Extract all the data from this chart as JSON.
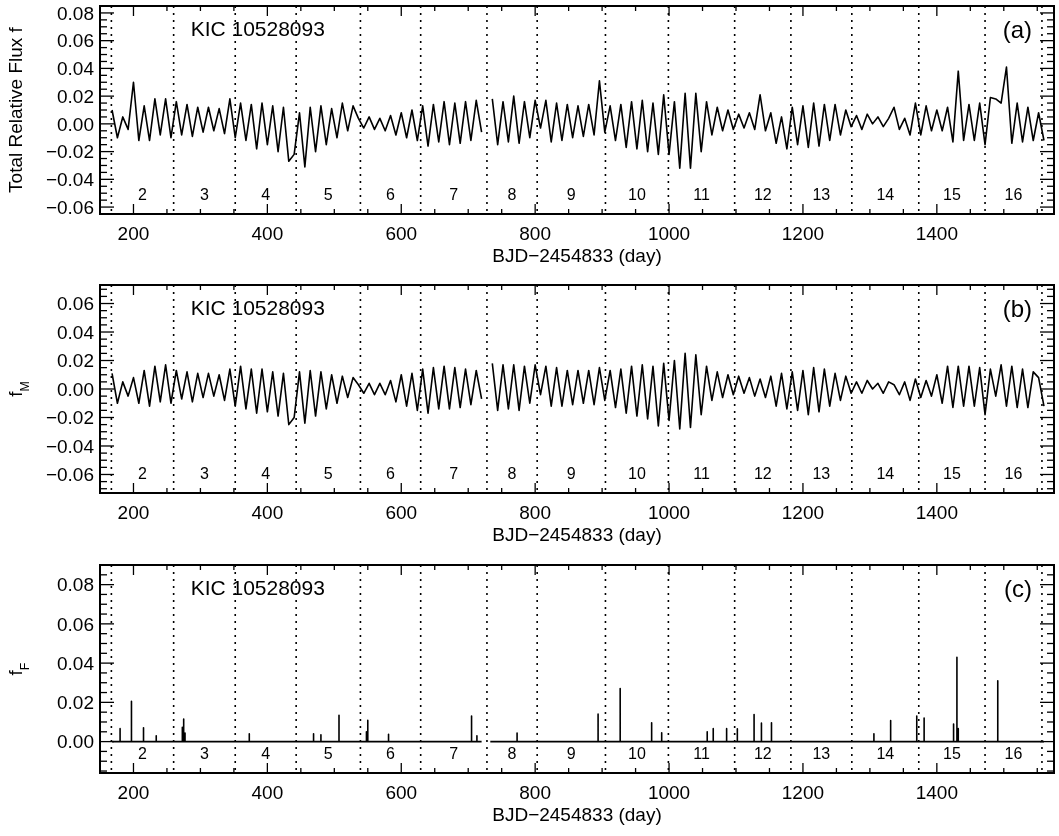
{
  "chart_data": [
    {
      "type": "line",
      "ylabel": "Total Relative Flux f",
      "xlabel": "BJD−2454833 (day)",
      "xlim": [
        150,
        1575
      ],
      "ylim": [
        -0.065,
        0.085
      ],
      "xticks": [
        {
          "value": 200,
          "label": "200"
        },
        {
          "value": 250,
          "label": null
        },
        {
          "value": 300,
          "label": null
        },
        {
          "value": 350,
          "label": null
        },
        {
          "value": 400,
          "label": "400"
        },
        {
          "value": 450,
          "label": null
        },
        {
          "value": 500,
          "label": null
        },
        {
          "value": 550,
          "label": null
        },
        {
          "value": 600,
          "label": "600"
        },
        {
          "value": 650,
          "label": null
        },
        {
          "value": 700,
          "label": null
        },
        {
          "value": 750,
          "label": null
        },
        {
          "value": 800,
          "label": "800"
        },
        {
          "value": 850,
          "label": null
        },
        {
          "value": 900,
          "label": null
        },
        {
          "value": 950,
          "label": null
        },
        {
          "value": 1000,
          "label": "1000"
        },
        {
          "value": 1050,
          "label": null
        },
        {
          "value": 1100,
          "label": null
        },
        {
          "value": 1150,
          "label": null
        },
        {
          "value": 1200,
          "label": "1200"
        },
        {
          "value": 1250,
          "label": null
        },
        {
          "value": 1300,
          "label": null
        },
        {
          "value": 1350,
          "label": null
        },
        {
          "value": 1400,
          "label": "1400"
        },
        {
          "value": 1450,
          "label": null
        },
        {
          "value": 1500,
          "label": null
        },
        {
          "value": 1550,
          "label": null
        }
      ],
      "yticks": [
        {
          "value": -0.06,
          "label": "−0.06"
        },
        {
          "value": -0.055,
          "label": null
        },
        {
          "value": -0.05,
          "label": null
        },
        {
          "value": -0.045,
          "label": null
        },
        {
          "value": -0.04,
          "label": "−0.04"
        },
        {
          "value": -0.035,
          "label": null
        },
        {
          "value": -0.03,
          "label": null
        },
        {
          "value": -0.025,
          "label": null
        },
        {
          "value": -0.02,
          "label": "−0.02"
        },
        {
          "value": -0.015,
          "label": null
        },
        {
          "value": -0.01,
          "label": null
        },
        {
          "value": -0.005,
          "label": null
        },
        {
          "value": 0,
          "label": "0.00"
        },
        {
          "value": 0.005,
          "label": null
        },
        {
          "value": 0.01,
          "label": null
        },
        {
          "value": 0.015,
          "label": null
        },
        {
          "value": 0.02,
          "label": "0.02"
        },
        {
          "value": 0.025,
          "label": null
        },
        {
          "value": 0.03,
          "label": null
        },
        {
          "value": 0.035,
          "label": null
        },
        {
          "value": 0.04,
          "label": "0.04"
        },
        {
          "value": 0.045,
          "label": null
        },
        {
          "value": 0.05,
          "label": null
        },
        {
          "value": 0.055,
          "label": null
        },
        {
          "value": 0.06,
          "label": "0.06"
        },
        {
          "value": 0.065,
          "label": null
        },
        {
          "value": 0.07,
          "label": null
        },
        {
          "value": 0.075,
          "label": null
        },
        {
          "value": 0.08,
          "label": "0.08"
        }
      ],
      "x": [
        168,
        176,
        184,
        192,
        200,
        208,
        216,
        224,
        232,
        240,
        248,
        256,
        264,
        272,
        280,
        288,
        296,
        304,
        312,
        320,
        328,
        336,
        344,
        352,
        360,
        368,
        376,
        384,
        392,
        400,
        408,
        416,
        424,
        432,
        440,
        448,
        456,
        464,
        472,
        480,
        488,
        496,
        504,
        512,
        520,
        528,
        536,
        544,
        552,
        560,
        568,
        576,
        584,
        592,
        600,
        608,
        616,
        624,
        632,
        640,
        648,
        656,
        664,
        672,
        680,
        688,
        696,
        704,
        712,
        720,
        728,
        736,
        744,
        752,
        760,
        768,
        776,
        784,
        792,
        800,
        808,
        816,
        824,
        832,
        840,
        848,
        856,
        864,
        872,
        880,
        888,
        896,
        904,
        912,
        920,
        928,
        936,
        944,
        952,
        960,
        968,
        976,
        984,
        992,
        1000,
        1008,
        1016,
        1024,
        1032,
        1040,
        1048,
        1056,
        1064,
        1072,
        1080,
        1088,
        1096,
        1104,
        1112,
        1120,
        1128,
        1136,
        1144,
        1152,
        1160,
        1168,
        1176,
        1184,
        1192,
        1200,
        1208,
        1216,
        1224,
        1232,
        1240,
        1248,
        1256,
        1264,
        1272,
        1280,
        1288,
        1296,
        1304,
        1312,
        1320,
        1328,
        1336,
        1344,
        1352,
        1360,
        1368,
        1376,
        1384,
        1392,
        1400,
        1408,
        1416,
        1424,
        1432,
        1440,
        1448,
        1456,
        1464,
        1472,
        1480,
        1488,
        1496,
        1504,
        1512,
        1520,
        1528,
        1536,
        1544,
        1552,
        1560
      ],
      "series": [
        {
          "color": "#000000",
          "values": [
            0.01,
            -0.01,
            0.005,
            -0.004,
            0.03,
            -0.012,
            0.013,
            -0.012,
            0.018,
            -0.008,
            0.018,
            -0.01,
            0.016,
            -0.008,
            0.014,
            -0.009,
            0.012,
            -0.006,
            0.012,
            -0.005,
            0.011,
            -0.007,
            0.018,
            -0.01,
            0.015,
            -0.012,
            0.014,
            -0.018,
            0.015,
            -0.015,
            0.013,
            -0.02,
            0.012,
            -0.027,
            -0.022,
            0.008,
            -0.031,
            0.012,
            -0.02,
            0.013,
            -0.015,
            0.011,
            -0.01,
            0.015,
            -0.005,
            0.013,
            0.004,
            -0.003,
            0.005,
            -0.004,
            0.004,
            -0.005,
            0.006,
            -0.008,
            0.008,
            -0.01,
            0.01,
            -0.012,
            0.013,
            -0.016,
            0.014,
            -0.013,
            0.016,
            -0.015,
            0.015,
            -0.014,
            0.016,
            -0.012,
            0.017,
            -0.006,
            null,
            0.018,
            -0.015,
            0.016,
            -0.013,
            0.02,
            -0.014,
            0.016,
            -0.01,
            0.017,
            -0.003,
            0.017,
            -0.013,
            0.015,
            -0.012,
            0.014,
            -0.01,
            0.013,
            -0.009,
            0.014,
            -0.008,
            0.031,
            -0.006,
            0.013,
            -0.012,
            0.014,
            -0.017,
            0.016,
            -0.018,
            0.017,
            -0.02,
            0.015,
            -0.022,
            0.021,
            -0.022,
            0.016,
            -0.032,
            0.022,
            -0.032,
            0.022,
            -0.02,
            0.016,
            -0.008,
            0.012,
            -0.005,
            0.01,
            -0.004,
            0.007,
            -0.003,
            0.008,
            -0.004,
            0.021,
            -0.005,
            0.008,
            -0.014,
            0.005,
            -0.018,
            0.012,
            -0.015,
            0.013,
            -0.017,
            0.015,
            -0.016,
            0.014,
            -0.012,
            0.014,
            -0.008,
            0.01,
            -0.002,
            0.006,
            -0.004,
            0.007,
            0,
            0.005,
            -0.002,
            0.004,
            0.012,
            -0.004,
            0.004,
            -0.008,
            0.015,
            -0.008,
            0.013,
            -0.005,
            0.01,
            -0.005,
            0.012,
            -0.013,
            0.038,
            -0.012,
            0.014,
            -0.012,
            0.015,
            -0.015,
            0.019,
            0.018,
            0.015,
            0.041,
            -0.014,
            0.015,
            -0.013,
            0.012,
            -0.012,
            0.008,
            -0.012
          ]
        }
      ],
      "ref_lines": [
        {
          "axis": "x",
          "value": 167,
          "line_style": "dotted"
        },
        {
          "axis": "x",
          "value": 260,
          "line_style": "dotted"
        },
        {
          "axis": "x",
          "value": 352,
          "line_style": "dotted"
        },
        {
          "axis": "x",
          "value": 443,
          "line_style": "dotted"
        },
        {
          "axis": "x",
          "value": 539,
          "line_style": "dotted"
        },
        {
          "axis": "x",
          "value": 629,
          "line_style": "dotted"
        },
        {
          "axis": "x",
          "value": 728,
          "line_style": "dotted"
        },
        {
          "axis": "x",
          "value": 803,
          "line_style": "dotted"
        },
        {
          "axis": "x",
          "value": 905,
          "line_style": "dotted"
        },
        {
          "axis": "x",
          "value": 999,
          "line_style": "dotted"
        },
        {
          "axis": "x",
          "value": 1098,
          "line_style": "dotted"
        },
        {
          "axis": "x",
          "value": 1182,
          "line_style": "dotted"
        },
        {
          "axis": "x",
          "value": 1273,
          "line_style": "dotted"
        },
        {
          "axis": "x",
          "value": 1373,
          "line_style": "dotted"
        },
        {
          "axis": "x",
          "value": 1472,
          "line_style": "dotted"
        },
        {
          "axis": "x",
          "value": 1557,
          "line_style": "dotted"
        }
      ],
      "annotations": [
        "KIC 10528093",
        "(a)",
        "2",
        "3",
        "4",
        "5",
        "6",
        "7",
        "8",
        "9",
        "10",
        "11",
        "12",
        "13",
        "14",
        "15",
        "16"
      ]
    },
    {
      "type": "line",
      "ylabel": "f$_{M}$",
      "xlabel": "BJD−2454833 (day)",
      "xlim": [
        150,
        1575
      ],
      "ylim": [
        -0.073,
        0.073
      ],
      "xticks": [
        {
          "value": 200,
          "label": "200"
        },
        {
          "value": 250,
          "label": null
        },
        {
          "value": 300,
          "label": null
        },
        {
          "value": 350,
          "label": null
        },
        {
          "value": 400,
          "label": "400"
        },
        {
          "value": 450,
          "label": null
        },
        {
          "value": 500,
          "label": null
        },
        {
          "value": 550,
          "label": null
        },
        {
          "value": 600,
          "label": "600"
        },
        {
          "value": 650,
          "label": null
        },
        {
          "value": 700,
          "label": null
        },
        {
          "value": 750,
          "label": null
        },
        {
          "value": 800,
          "label": "800"
        },
        {
          "value": 850,
          "label": null
        },
        {
          "value": 900,
          "label": null
        },
        {
          "value": 950,
          "label": null
        },
        {
          "value": 1000,
          "label": "1000"
        },
        {
          "value": 1050,
          "label": null
        },
        {
          "value": 1100,
          "label": null
        },
        {
          "value": 1150,
          "label": null
        },
        {
          "value": 1200,
          "label": "1200"
        },
        {
          "value": 1250,
          "label": null
        },
        {
          "value": 1300,
          "label": null
        },
        {
          "value": 1350,
          "label": null
        },
        {
          "value": 1400,
          "label": "1400"
        },
        {
          "value": 1450,
          "label": null
        },
        {
          "value": 1500,
          "label": null
        },
        {
          "value": 1550,
          "label": null
        }
      ],
      "yticks": [
        {
          "value": -0.07,
          "label": null
        },
        {
          "value": -0.065,
          "label": null
        },
        {
          "value": -0.06,
          "label": "−0.06"
        },
        {
          "value": -0.055,
          "label": null
        },
        {
          "value": -0.05,
          "label": null
        },
        {
          "value": -0.045,
          "label": null
        },
        {
          "value": -0.04,
          "label": "−0.04"
        },
        {
          "value": -0.035,
          "label": null
        },
        {
          "value": -0.03,
          "label": null
        },
        {
          "value": -0.025,
          "label": null
        },
        {
          "value": -0.02,
          "label": "−0.02"
        },
        {
          "value": -0.015,
          "label": null
        },
        {
          "value": -0.01,
          "label": null
        },
        {
          "value": -0.005,
          "label": null
        },
        {
          "value": 0,
          "label": "0.00"
        },
        {
          "value": 0.005,
          "label": null
        },
        {
          "value": 0.01,
          "label": null
        },
        {
          "value": 0.015,
          "label": null
        },
        {
          "value": 0.02,
          "label": "0.02"
        },
        {
          "value": 0.025,
          "label": null
        },
        {
          "value": 0.03,
          "label": null
        },
        {
          "value": 0.035,
          "label": null
        },
        {
          "value": 0.04,
          "label": "0.04"
        },
        {
          "value": 0.045,
          "label": null
        },
        {
          "value": 0.05,
          "label": null
        },
        {
          "value": 0.055,
          "label": null
        },
        {
          "value": 0.06,
          "label": "0.06"
        },
        {
          "value": 0.065,
          "label": null
        },
        {
          "value": 0.07,
          "label": null
        }
      ],
      "x": [
        168,
        176,
        184,
        192,
        200,
        208,
        216,
        224,
        232,
        240,
        248,
        256,
        264,
        272,
        280,
        288,
        296,
        304,
        312,
        320,
        328,
        336,
        344,
        352,
        360,
        368,
        376,
        384,
        392,
        400,
        408,
        416,
        424,
        432,
        440,
        448,
        456,
        464,
        472,
        480,
        488,
        496,
        504,
        512,
        520,
        528,
        536,
        544,
        552,
        560,
        568,
        576,
        584,
        592,
        600,
        608,
        616,
        624,
        632,
        640,
        648,
        656,
        664,
        672,
        680,
        688,
        696,
        704,
        712,
        720,
        728,
        736,
        744,
        752,
        760,
        768,
        776,
        784,
        792,
        800,
        808,
        816,
        824,
        832,
        840,
        848,
        856,
        864,
        872,
        880,
        888,
        896,
        904,
        912,
        920,
        928,
        936,
        944,
        952,
        960,
        968,
        976,
        984,
        992,
        1000,
        1008,
        1016,
        1024,
        1032,
        1040,
        1048,
        1056,
        1064,
        1072,
        1080,
        1088,
        1096,
        1104,
        1112,
        1120,
        1128,
        1136,
        1144,
        1152,
        1160,
        1168,
        1176,
        1184,
        1192,
        1200,
        1208,
        1216,
        1224,
        1232,
        1240,
        1248,
        1256,
        1264,
        1272,
        1280,
        1288,
        1296,
        1304,
        1312,
        1320,
        1328,
        1336,
        1344,
        1352,
        1360,
        1368,
        1376,
        1384,
        1392,
        1400,
        1408,
        1416,
        1424,
        1432,
        1440,
        1448,
        1456,
        1464,
        1472,
        1480,
        1488,
        1496,
        1504,
        1512,
        1520,
        1528,
        1536,
        1544,
        1552,
        1560
      ],
      "series": [
        {
          "color": "#000000",
          "values": [
            0.011,
            -0.01,
            0.005,
            -0.005,
            0.008,
            -0.01,
            0.013,
            -0.012,
            0.016,
            -0.009,
            0.017,
            -0.01,
            0.013,
            -0.007,
            0.012,
            -0.009,
            0.011,
            -0.006,
            0.011,
            -0.005,
            0.01,
            -0.008,
            0.014,
            -0.012,
            0.016,
            -0.014,
            0.014,
            -0.017,
            0.014,
            -0.016,
            0.012,
            -0.019,
            0.011,
            -0.025,
            -0.02,
            0.012,
            -0.024,
            0.013,
            -0.019,
            0.012,
            -0.014,
            0.01,
            -0.01,
            0.009,
            -0.006,
            0.008,
            0.003,
            -0.003,
            0.004,
            -0.004,
            0.004,
            -0.004,
            0.006,
            -0.009,
            0.01,
            -0.012,
            0.011,
            -0.015,
            0.014,
            -0.017,
            0.015,
            -0.014,
            0.016,
            -0.014,
            0.015,
            -0.013,
            0.014,
            -0.011,
            0.013,
            -0.007,
            null,
            0.018,
            -0.015,
            0.017,
            -0.014,
            0.017,
            -0.015,
            0.016,
            -0.01,
            0.017,
            -0.004,
            0.016,
            -0.012,
            0.015,
            -0.012,
            0.013,
            -0.011,
            0.013,
            -0.01,
            0.013,
            -0.011,
            0.015,
            -0.008,
            0.013,
            -0.013,
            0.014,
            -0.017,
            0.016,
            -0.019,
            0.017,
            -0.021,
            0.016,
            -0.026,
            0.018,
            -0.022,
            0.02,
            -0.028,
            0.025,
            -0.027,
            0.024,
            -0.018,
            0.016,
            -0.008,
            0.012,
            -0.006,
            0.01,
            -0.004,
            0.009,
            -0.003,
            0.008,
            -0.005,
            0.007,
            -0.006,
            0.009,
            -0.012,
            0.011,
            -0.014,
            0.012,
            -0.015,
            0.013,
            -0.018,
            0.015,
            -0.016,
            0.014,
            -0.012,
            0.011,
            -0.008,
            0.009,
            -0.003,
            0.005,
            -0.003,
            0.006,
            0,
            0.004,
            -0.003,
            0.005,
            0.003,
            -0.004,
            0.005,
            -0.008,
            0.007,
            -0.006,
            0.006,
            -0.005,
            0.01,
            -0.01,
            0.016,
            -0.013,
            0.016,
            -0.012,
            0.016,
            -0.012,
            0.015,
            -0.018,
            0.014,
            -0.005,
            0.017,
            -0.012,
            0.016,
            -0.013,
            0.014,
            -0.013,
            0.012,
            0.008,
            -0.012
          ]
        }
      ],
      "ref_lines": [
        {
          "axis": "x",
          "value": 167,
          "line_style": "dotted"
        },
        {
          "axis": "x",
          "value": 260,
          "line_style": "dotted"
        },
        {
          "axis": "x",
          "value": 352,
          "line_style": "dotted"
        },
        {
          "axis": "x",
          "value": 443,
          "line_style": "dotted"
        },
        {
          "axis": "x",
          "value": 539,
          "line_style": "dotted"
        },
        {
          "axis": "x",
          "value": 629,
          "line_style": "dotted"
        },
        {
          "axis": "x",
          "value": 728,
          "line_style": "dotted"
        },
        {
          "axis": "x",
          "value": 803,
          "line_style": "dotted"
        },
        {
          "axis": "x",
          "value": 905,
          "line_style": "dotted"
        },
        {
          "axis": "x",
          "value": 999,
          "line_style": "dotted"
        },
        {
          "axis": "x",
          "value": 1098,
          "line_style": "dotted"
        },
        {
          "axis": "x",
          "value": 1182,
          "line_style": "dotted"
        },
        {
          "axis": "x",
          "value": 1273,
          "line_style": "dotted"
        },
        {
          "axis": "x",
          "value": 1373,
          "line_style": "dotted"
        },
        {
          "axis": "x",
          "value": 1472,
          "line_style": "dotted"
        },
        {
          "axis": "x",
          "value": 1557,
          "line_style": "dotted"
        }
      ],
      "annotations": [
        "KIC 10528093",
        "(b)",
        "2",
        "3",
        "4",
        "5",
        "6",
        "7",
        "8",
        "9",
        "10",
        "11",
        "12",
        "13",
        "14",
        "15",
        "16"
      ]
    },
    {
      "type": "line",
      "ylabel": "f$_{F}$",
      "xlabel": "BJD−2454833 (day)",
      "xlim": [
        150,
        1575
      ],
      "ylim": [
        -0.016,
        0.09
      ],
      "xticks": [
        {
          "value": 200,
          "label": "200"
        },
        {
          "value": 250,
          "label": null
        },
        {
          "value": 300,
          "label": null
        },
        {
          "value": 350,
          "label": null
        },
        {
          "value": 400,
          "label": "400"
        },
        {
          "value": 450,
          "label": null
        },
        {
          "value": 500,
          "label": null
        },
        {
          "value": 550,
          "label": null
        },
        {
          "value": 600,
          "label": "600"
        },
        {
          "value": 650,
          "label": null
        },
        {
          "value": 700,
          "label": null
        },
        {
          "value": 750,
          "label": null
        },
        {
          "value": 800,
          "label": "800"
        },
        {
          "value": 850,
          "label": null
        },
        {
          "value": 900,
          "label": null
        },
        {
          "value": 950,
          "label": null
        },
        {
          "value": 1000,
          "label": "1000"
        },
        {
          "value": 1050,
          "label": null
        },
        {
          "value": 1100,
          "label": null
        },
        {
          "value": 1150,
          "label": null
        },
        {
          "value": 1200,
          "label": "1200"
        },
        {
          "value": 1250,
          "label": null
        },
        {
          "value": 1300,
          "label": null
        },
        {
          "value": 1350,
          "label": null
        },
        {
          "value": 1400,
          "label": "1400"
        },
        {
          "value": 1450,
          "label": null
        },
        {
          "value": 1500,
          "label": null
        },
        {
          "value": 1550,
          "label": null
        }
      ],
      "yticks": [
        {
          "value": -0.015,
          "label": null
        },
        {
          "value": -0.01,
          "label": null
        },
        {
          "value": -0.005,
          "label": null
        },
        {
          "value": 0,
          "label": "0.00"
        },
        {
          "value": 0.005,
          "label": null
        },
        {
          "value": 0.01,
          "label": null
        },
        {
          "value": 0.015,
          "label": null
        },
        {
          "value": 0.02,
          "label": "0.02"
        },
        {
          "value": 0.025,
          "label": null
        },
        {
          "value": 0.03,
          "label": null
        },
        {
          "value": 0.035,
          "label": null
        },
        {
          "value": 0.04,
          "label": "0.04"
        },
        {
          "value": 0.045,
          "label": null
        },
        {
          "value": 0.05,
          "label": null
        },
        {
          "value": 0.055,
          "label": null
        },
        {
          "value": 0.06,
          "label": "0.06"
        },
        {
          "value": 0.065,
          "label": null
        },
        {
          "value": 0.07,
          "label": null
        },
        {
          "value": 0.075,
          "label": null
        },
        {
          "value": 0.08,
          "label": "0.08"
        },
        {
          "value": 0.085,
          "label": null
        }
      ],
      "x": [
        168,
        180,
        180,
        180,
        197,
        197,
        197,
        215,
        215,
        215,
        234,
        234,
        234,
        273,
        273,
        273,
        275,
        275,
        275,
        277,
        277,
        277,
        373,
        373,
        373,
        469,
        469,
        469,
        480,
        480,
        480,
        507,
        507,
        507,
        548,
        548,
        548,
        550,
        550,
        550,
        581,
        581,
        581,
        705,
        705,
        705,
        713,
        713,
        713,
        720,
        726,
        733,
        773,
        773,
        773,
        894,
        894,
        894,
        927,
        927,
        927,
        974,
        974,
        974,
        989,
        989,
        989,
        1057,
        1057,
        1057,
        1066,
        1066,
        1066,
        1086,
        1086,
        1086,
        1102,
        1102,
        1102,
        1127,
        1127,
        1127,
        1138,
        1138,
        1138,
        1153,
        1153,
        1153,
        1306,
        1306,
        1306,
        1331,
        1331,
        1331,
        1370,
        1370,
        1370,
        1381,
        1381,
        1381,
        1425,
        1425,
        1425,
        1430,
        1430,
        1430,
        1432,
        1432,
        1432,
        1491,
        1491,
        1491,
        1560
      ],
      "series": [
        {
          "color": "#000000",
          "values": [
            0,
            0,
            0.0066,
            0,
            0,
            0.0206,
            0,
            0,
            0.007,
            0,
            0,
            0.003,
            0,
            0,
            0.0073,
            0,
            0,
            0.0115,
            0,
            0,
            0.0044,
            0,
            0,
            0.004,
            0,
            0,
            0.004,
            0,
            0,
            0.0035,
            0,
            0,
            0.0134,
            0,
            0,
            0.005,
            0,
            0,
            0.0108,
            0,
            0,
            0.0037,
            0,
            0,
            0.013,
            0,
            0,
            0.003,
            0,
            0,
            null,
            0,
            0,
            0.0044,
            0,
            0,
            0.014,
            0,
            0,
            0.027,
            0,
            0,
            0.0096,
            0,
            0,
            0.0045,
            0,
            0,
            0.005,
            0,
            0,
            0.0066,
            0,
            0,
            0.0066,
            0,
            0,
            0.0065,
            0,
            0,
            0.0138,
            0,
            0,
            0.0094,
            0,
            0,
            0.0096,
            0,
            0,
            0.004,
            0,
            0,
            0.0107,
            0,
            0,
            0.013,
            0,
            0,
            0.012,
            0,
            0,
            0.009,
            0,
            0,
            0.043,
            0,
            0,
            0.0066,
            0,
            0,
            0.031,
            0,
            0
          ]
        }
      ],
      "ref_lines": [
        {
          "axis": "x",
          "value": 167,
          "line_style": "dotted"
        },
        {
          "axis": "x",
          "value": 260,
          "line_style": "dotted"
        },
        {
          "axis": "x",
          "value": 352,
          "line_style": "dotted"
        },
        {
          "axis": "x",
          "value": 443,
          "line_style": "dotted"
        },
        {
          "axis": "x",
          "value": 539,
          "line_style": "dotted"
        },
        {
          "axis": "x",
          "value": 629,
          "line_style": "dotted"
        },
        {
          "axis": "x",
          "value": 728,
          "line_style": "dotted"
        },
        {
          "axis": "x",
          "value": 803,
          "line_style": "dotted"
        },
        {
          "axis": "x",
          "value": 905,
          "line_style": "dotted"
        },
        {
          "axis": "x",
          "value": 999,
          "line_style": "dotted"
        },
        {
          "axis": "x",
          "value": 1098,
          "line_style": "dotted"
        },
        {
          "axis": "x",
          "value": 1182,
          "line_style": "dotted"
        },
        {
          "axis": "x",
          "value": 1273,
          "line_style": "dotted"
        },
        {
          "axis": "x",
          "value": 1373,
          "line_style": "dotted"
        },
        {
          "axis": "x",
          "value": 1472,
          "line_style": "dotted"
        },
        {
          "axis": "x",
          "value": 1557,
          "line_style": "dotted"
        }
      ],
      "annotations": [
        "KIC 10528093",
        "(c)",
        "2",
        "3",
        "4",
        "5",
        "6",
        "7",
        "8",
        "9",
        "10",
        "11",
        "12",
        "13",
        "14",
        "15",
        "16"
      ]
    }
  ]
}
